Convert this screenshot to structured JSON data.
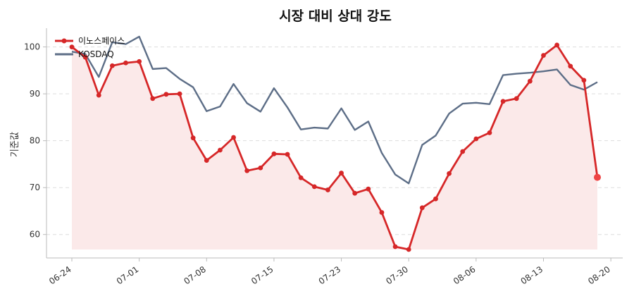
{
  "chart_data": {
    "type": "line",
    "title": "시장 대비 상대 강도",
    "ylabel": "기준값",
    "xlabel": "",
    "ylim": [
      55,
      104
    ],
    "yticks": [
      60,
      70,
      80,
      90,
      100
    ],
    "grid": "horizontal dashed",
    "legend_position": "top-left",
    "x_tick_labels": [
      "06-24",
      "07-01",
      "07-08",
      "07-15",
      "07-23",
      "07-30",
      "08-06",
      "08-13",
      "08-20"
    ],
    "x_tick_index": [
      0,
      5,
      10,
      15,
      20,
      25,
      30,
      35,
      40
    ],
    "series": [
      {
        "name": "이노스페이스",
        "color": "#d62728",
        "fill": "#fbe9e9",
        "marker": "circle",
        "values": [
          100,
          97.8,
          89.7,
          96,
          96.6,
          96.9,
          89,
          89.9,
          90,
          80.6,
          75.8,
          78,
          80.7,
          73.6,
          74.2,
          77.2,
          77.1,
          72.1,
          70.2,
          69.5,
          73.1,
          68.8,
          69.7,
          64.7,
          57.4,
          56.8,
          65.7,
          67.6,
          73,
          77.7,
          80.4,
          81.7,
          88.4,
          89,
          92.7,
          98.2,
          100.4,
          95.9,
          92.9,
          72.2
        ]
      },
      {
        "name": "KOSDAQ",
        "color": "#5d6e87",
        "values": [
          99,
          98.5,
          93.6,
          101,
          100.6,
          102.2,
          95.3,
          95.5,
          93.2,
          91.4,
          86.3,
          87.3,
          92.1,
          88,
          86.2,
          91.2,
          87.1,
          82.4,
          82.8,
          82.6,
          86.9,
          82.3,
          84.1,
          77.4,
          72.8,
          70.9,
          79.1,
          81.1,
          85.8,
          87.9,
          88.1,
          87.8,
          94,
          94.3,
          94.5,
          94.8,
          95.2,
          91.9,
          90.9,
          92.5
        ]
      }
    ]
  }
}
